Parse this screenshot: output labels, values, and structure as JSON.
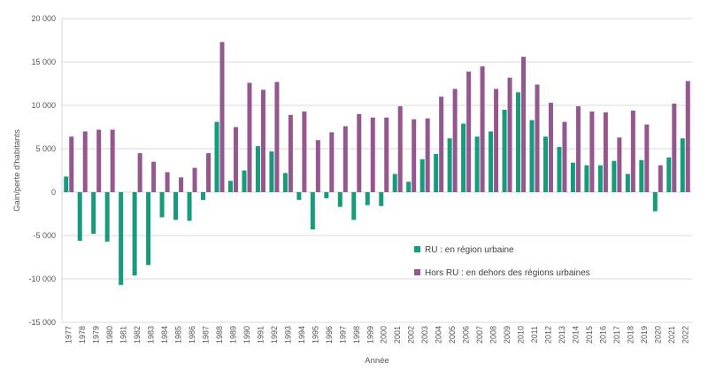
{
  "chart_data": {
    "type": "bar",
    "xlabel": "Année",
    "ylabel": "Gain/perte d'habitants",
    "ylim": [
      -15000,
      20000
    ],
    "yticks": [
      -15000,
      -10000,
      -5000,
      0,
      5000,
      10000,
      15000,
      20000
    ],
    "ytick_labels": [
      "-15 000",
      "-10 000",
      "-5 000",
      "0",
      "5 000",
      "10 000",
      "15 000",
      "20 000"
    ],
    "grid": true,
    "legend_position": "center-right",
    "categories": [
      "1977",
      "1978",
      "1979",
      "1980",
      "1981",
      "1982",
      "1983",
      "1984",
      "1985",
      "1986",
      "1987",
      "1988",
      "1989",
      "1990",
      "1991",
      "1992",
      "1993",
      "1994",
      "1995",
      "1996",
      "1997",
      "1998",
      "1999",
      "2000",
      "2001",
      "2002",
      "2003",
      "2004",
      "2005",
      "2006",
      "2007",
      "2008",
      "2009",
      "2010",
      "2011",
      "2012",
      "2013",
      "2014",
      "2015",
      "2016",
      "2017",
      "2018",
      "2019",
      "2020",
      "2021",
      "2022"
    ],
    "series": [
      {
        "name": "RU : en région urbaine",
        "color": "#169b7c",
        "values": [
          1800,
          -5600,
          -4800,
          -5700,
          -10700,
          -9600,
          -8400,
          -2900,
          -3200,
          -3300,
          -900,
          8100,
          1300,
          2500,
          5300,
          4700,
          2200,
          -900,
          -4300,
          -700,
          -1700,
          -3200,
          -1500,
          -1600,
          2100,
          1200,
          3800,
          4400,
          6200,
          7900,
          6400,
          7000,
          9500,
          11500,
          8300,
          6400,
          5200,
          3400,
          3100,
          3100,
          3600,
          2100,
          3700,
          -2200,
          4000,
          6200
        ]
      },
      {
        "name": "Hors RU : en dehors des régions urbaines",
        "color": "#95578f",
        "values": [
          6400,
          7000,
          7200,
          7200,
          0,
          4500,
          3500,
          2300,
          1700,
          2800,
          4500,
          17300,
          7500,
          12600,
          11800,
          12700,
          8900,
          9300,
          6000,
          6900,
          7600,
          9000,
          8600,
          8600,
          9900,
          8400,
          8500,
          11000,
          11900,
          13900,
          14500,
          11900,
          13200,
          15600,
          12400,
          10300,
          8100,
          9900,
          9300,
          9200,
          6300,
          9400,
          7800,
          3100,
          10200,
          12800
        ]
      }
    ]
  }
}
